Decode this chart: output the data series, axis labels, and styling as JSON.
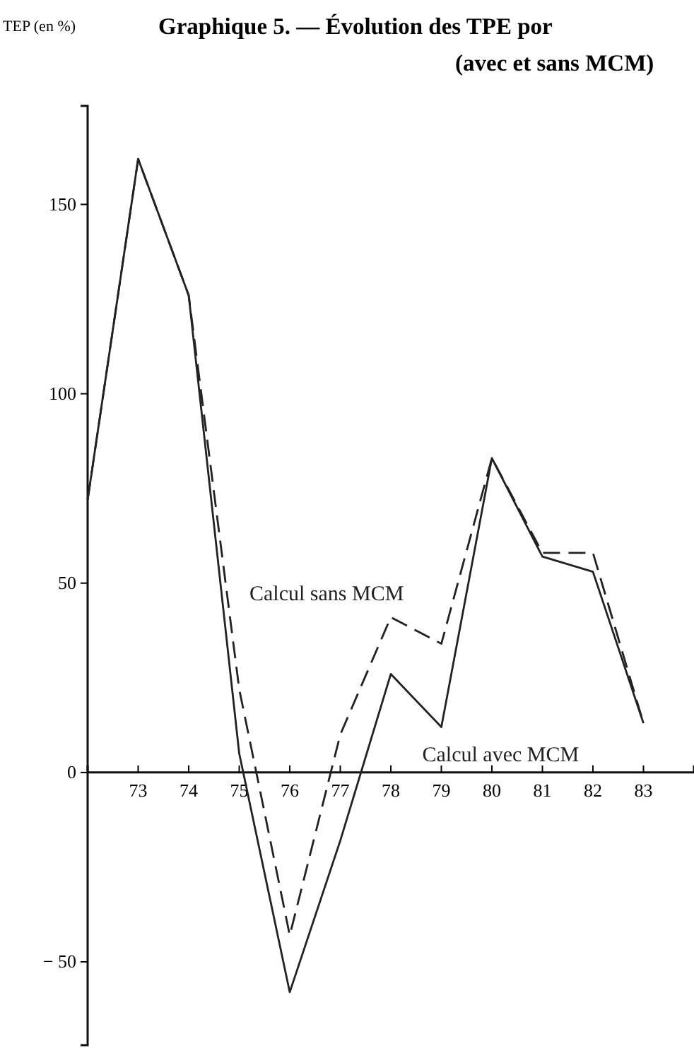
{
  "chart_data": {
    "type": "line",
    "title": "Graphique 5. — Évolution des TPE por",
    "subtitle": "(avec et sans MCM)",
    "ylabel": "TEP (en %)",
    "x": [
      72,
      73,
      74,
      75,
      76,
      77,
      78,
      79,
      80,
      81,
      82,
      83
    ],
    "xlim": [
      72,
      84
    ],
    "xticks": [
      73,
      74,
      75,
      76,
      77,
      78,
      79,
      80,
      81,
      82,
      83
    ],
    "ylim": [
      -72,
      176
    ],
    "yticks": [
      {
        "value": -50,
        "label": "− 50"
      },
      0,
      50,
      100,
      150
    ],
    "grid": false,
    "legend": false,
    "marker": "none",
    "series": [
      {
        "name": "Calcul sans MCM",
        "color": "#222222",
        "line_style": "dashed",
        "values": [
          72,
          162,
          126,
          22,
          -43,
          10,
          41,
          34,
          83,
          58,
          58,
          13
        ]
      },
      {
        "name": "Calcul avec MCM",
        "color": "#222222",
        "line_style": "solid",
        "values": [
          72,
          162,
          126,
          5,
          -58,
          -18,
          26,
          12,
          83,
          57,
          53,
          13
        ]
      }
    ]
  }
}
